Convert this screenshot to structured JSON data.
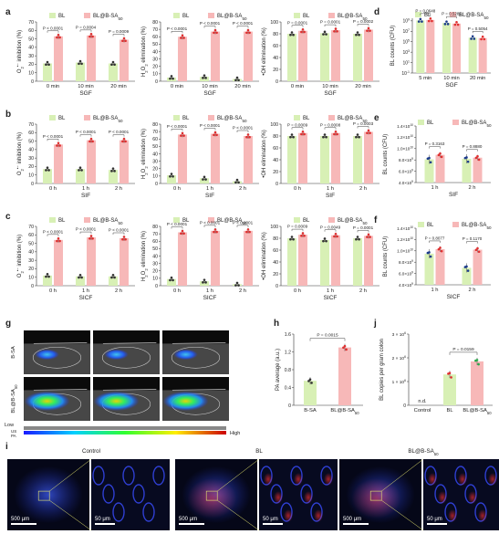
{
  "colors": {
    "bl": "#d8f0b5",
    "blab": "#f7b8b8",
    "axis": "#333333",
    "pval": "#333333"
  },
  "legend": {
    "bl": "BL",
    "blab": "BL@B-SA",
    "blab_sub": "50"
  },
  "ylabels": {
    "o2": [
      "O",
      "2",
      "•−",
      " inhibition (%)"
    ],
    "h2o2": [
      "H",
      "2",
      "O",
      "2",
      " elimination (%)"
    ],
    "oh": "•OH elimination (%)",
    "bl": "BL counts (CFU)"
  },
  "rows": [
    {
      "letter": "a",
      "group": "SGF",
      "times": [
        "0 min",
        "10 min",
        "20 min"
      ],
      "panels": [
        {
          "id": "o2",
          "ylim": [
            0,
            70
          ],
          "ticks": [
            0,
            10,
            20,
            30,
            40,
            50,
            60,
            70
          ],
          "bl": [
            21,
            22,
            21
          ],
          "blab": [
            53,
            54,
            49
          ],
          "p": [
            "P < 0.0001",
            "P = 0.0004",
            "P = 0.0009"
          ]
        },
        {
          "id": "h2o2",
          "ylim": [
            0,
            80
          ],
          "ticks": [
            0,
            10,
            20,
            30,
            40,
            50,
            60,
            70,
            80
          ],
          "bl": [
            5,
            6,
            3
          ],
          "blab": [
            60,
            67,
            67
          ],
          "p": [
            "P < 0.0001",
            "P < 0.0001",
            "P < 0.0001"
          ]
        },
        {
          "id": "oh",
          "ylim": [
            0,
            100
          ],
          "ticks": [
            0,
            20,
            40,
            60,
            80,
            100
          ],
          "bl": [
            80,
            81,
            80
          ],
          "blab": [
            85,
            86,
            87
          ],
          "p": [
            "P = 0.0001",
            "P = 0.0001",
            "P = 0.0002"
          ]
        }
      ]
    },
    {
      "letter": "b",
      "group": "SIF",
      "times": [
        "0 h",
        "1 h",
        "2 h"
      ],
      "panels": [
        {
          "id": "o2",
          "ylim": [
            0,
            70
          ],
          "ticks": [
            0,
            10,
            20,
            30,
            40,
            50,
            60,
            70
          ],
          "bl": [
            17,
            17,
            16
          ],
          "blab": [
            46,
            51,
            51
          ],
          "p": [
            "P < 0.0001",
            "P < 0.0001",
            "P < 0.0001"
          ]
        },
        {
          "id": "h2o2",
          "ylim": [
            0,
            80
          ],
          "ticks": [
            0,
            10,
            20,
            30,
            40,
            50,
            60,
            70,
            80
          ],
          "bl": [
            11,
            7,
            3
          ],
          "blab": [
            66,
            67,
            64
          ],
          "p": [
            "P < 0.0001",
            "P < 0.0001",
            "P < 0.0001"
          ]
        },
        {
          "id": "oh",
          "ylim": [
            0,
            100
          ],
          "ticks": [
            0,
            20,
            40,
            60,
            80,
            100
          ],
          "bl": [
            80,
            80,
            80
          ],
          "blab": [
            85,
            85,
            87
          ],
          "p": [
            "P = 0.0009",
            "P = 0.0008",
            "P = 0.0003"
          ]
        }
      ]
    },
    {
      "letter": "c",
      "group": "SICF",
      "times": [
        "0 h",
        "1 h",
        "2 h"
      ],
      "panels": [
        {
          "id": "o2",
          "ylim": [
            0,
            70
          ],
          "ticks": [
            0,
            10,
            20,
            30,
            40,
            50,
            60,
            70
          ],
          "bl": [
            12,
            11,
            11
          ],
          "blab": [
            54,
            57,
            56
          ],
          "p": [
            "P < 0.0001",
            "P < 0.0001",
            "P < 0.0001"
          ]
        },
        {
          "id": "h2o2",
          "ylim": [
            0,
            80
          ],
          "ticks": [
            0,
            10,
            20,
            30,
            40,
            50,
            60,
            70,
            80
          ],
          "bl": [
            9,
            6,
            2
          ],
          "blab": [
            72,
            74,
            74
          ],
          "p": [
            "P < 0.0001",
            "P < 0.0001",
            "P < 0.0001"
          ]
        },
        {
          "id": "oh",
          "ylim": [
            0,
            100
          ],
          "ticks": [
            0,
            20,
            40,
            60,
            80,
            100
          ],
          "bl": [
            80,
            77,
            80
          ],
          "blab": [
            86,
            85,
            84
          ],
          "p": [
            "P = 0.0009",
            "P = 0.0049",
            "P = 0.0001"
          ]
        }
      ]
    }
  ],
  "chart_data": [
    {
      "type": "bar",
      "panel": "d",
      "group": "SGF",
      "scale": "log",
      "categories": [
        "5 min",
        "10 min",
        "20 min"
      ],
      "series": [
        {
          "name": "BL",
          "values": [
            1200000000.0,
            400000000.0,
            600000.0
          ]
        },
        {
          "name": "BL@B-SA50",
          "values": [
            1500000000.0,
            300000000.0,
            500000.0
          ]
        }
      ],
      "yticks": [
        "10^-1",
        "10^1",
        "10^3",
        "10^5",
        "10^7",
        "10^9"
      ],
      "ylabel": "BL counts (CFU)",
      "pvalues": [
        "P = 0.0648",
        "P = 0.5281",
        "P = 0.5054"
      ]
    },
    {
      "type": "bar",
      "panel": "e",
      "group": "SIF",
      "categories": [
        "1 h",
        "2 h"
      ],
      "series": [
        {
          "name": "BL",
          "values": [
            8100000000.0,
            8200000000.0
          ]
        },
        {
          "name": "BL@B-SA50",
          "values": [
            8900000000.0,
            8400000000.0
          ]
        }
      ],
      "yticks": [
        "4.0×10^9",
        "6.0×10^9",
        "8.0×10^9",
        "1.0×10^10",
        "1.2×10^10",
        "1.4×10^10"
      ],
      "ylabel": "BL counts (CFU)",
      "ylim": [
        4000000000.0,
        14000000000.0
      ],
      "pvalues": [
        "P = 0.3163",
        "P = 0.8880"
      ]
    },
    {
      "type": "bar",
      "panel": "f",
      "group": "SICF",
      "categories": [
        "1 h",
        "2 h"
      ],
      "series": [
        {
          "name": "BL",
          "values": [
            9500000000.0,
            7000000000.0
          ]
        },
        {
          "name": "BL@B-SA50",
          "values": [
            10300000000.0,
            10200000000.0
          ]
        }
      ],
      "yticks": [
        "4.0×10^9",
        "6.0×10^9",
        "8.0×10^9",
        "1.0×10^10",
        "1.2×10^10",
        "1.4×10^10"
      ],
      "ylabel": "BL counts (CFU)",
      "ylim": [
        4000000000.0,
        14000000000.0
      ],
      "pvalues": [
        "P = 0.8077",
        "P = 0.1170"
      ]
    },
    {
      "type": "bar",
      "panel": "h",
      "categories": [
        "B-SA",
        "BL@B-SA50"
      ],
      "values": [
        0.55,
        1.3
      ],
      "yticks": [
        "0",
        "0.4",
        "0.8",
        "1.2",
        "1.6"
      ],
      "ylim": [
        0,
        1.6
      ],
      "ylabel": "PA average (a.u.)",
      "pvalue": "P = 0.0015"
    },
    {
      "type": "bar",
      "panel": "j",
      "categories": [
        "Control",
        "BL",
        "BL@B-SA50"
      ],
      "values": [
        0,
        1300000.0,
        1850000.0
      ],
      "yticks": [
        "0",
        "1 × 10^6",
        "2 × 10^6",
        "3 × 10^6"
      ],
      "ylim": [
        0,
        3000000.0
      ],
      "ylabel": "BL copies per gram colon",
      "pvalue": "P = 0.0159",
      "control_note": "n.d."
    }
  ],
  "panel_g": {
    "letter": "g",
    "rows": [
      "B-SA",
      "BL@B-SA50"
    ],
    "scale_low": "Low",
    "scale_high": "High",
    "us": "US",
    "pa": "PA"
  },
  "panel_i": {
    "letter": "i",
    "titles": [
      "Control",
      "BL",
      "BL@B-SA50"
    ],
    "scale_big": "500 μm",
    "scale_small": "50 μm"
  },
  "letters": {
    "d": "d",
    "e": "e",
    "f": "f",
    "h": "h",
    "j": "j"
  },
  "misc": {
    "bl_label": "BL",
    "nd": "n.d."
  }
}
